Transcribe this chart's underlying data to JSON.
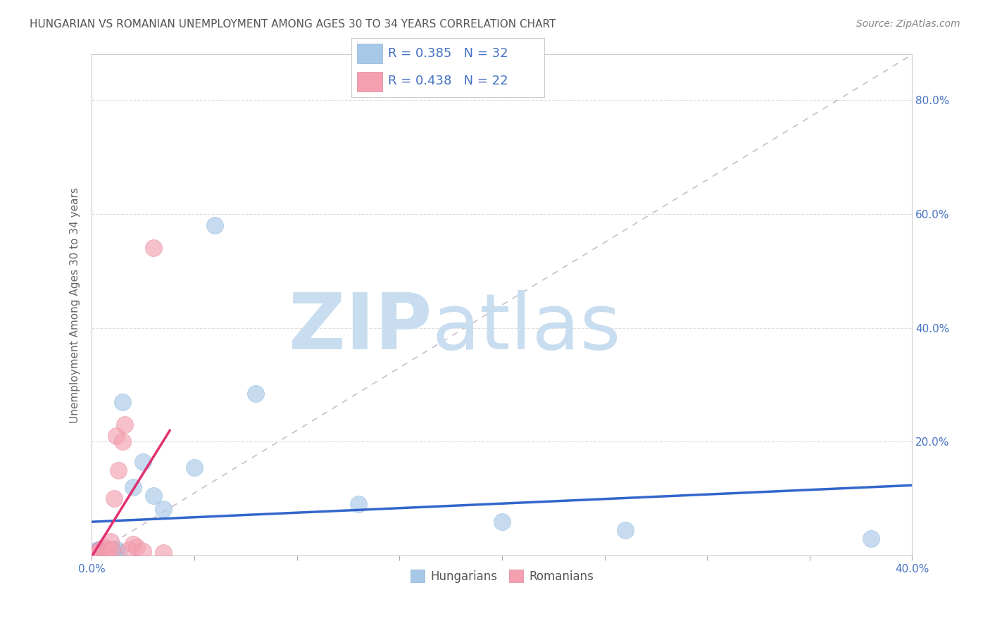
{
  "title": "HUNGARIAN VS ROMANIAN UNEMPLOYMENT AMONG AGES 30 TO 34 YEARS CORRELATION CHART",
  "source": "Source: ZipAtlas.com",
  "ylabel": "Unemployment Among Ages 30 to 34 years",
  "xlim": [
    0.0,
    0.4
  ],
  "ylim": [
    0.0,
    0.88
  ],
  "xticks": [
    0.0,
    0.05,
    0.1,
    0.15,
    0.2,
    0.25,
    0.3,
    0.35,
    0.4
  ],
  "yticks": [
    0.0,
    0.2,
    0.4,
    0.6,
    0.8
  ],
  "blue_color": "#a8c8e8",
  "pink_color": "#f4a0b0",
  "blue_line_color": "#3366cc",
  "pink_line_color": "#e03070",
  "diag_color": "#ccbbcc",
  "watermark_zip_color": "#c8ddef",
  "watermark_atlas_color": "#c8ddef",
  "legend_text_color": "#4472c4",
  "tick_color": "#4472c4",
  "title_color": "#555555",
  "source_color": "#888888",
  "ylabel_color": "#666666",
  "grid_color": "#dddddd",
  "hungarian_R": 0.385,
  "hungarian_N": 32,
  "romanian_R": 0.438,
  "romanian_N": 22,
  "hun_x": [
    0.001,
    0.002,
    0.002,
    0.003,
    0.003,
    0.004,
    0.004,
    0.005,
    0.005,
    0.006,
    0.006,
    0.007,
    0.007,
    0.008,
    0.008,
    0.009,
    0.01,
    0.011,
    0.012,
    0.013,
    0.015,
    0.02,
    0.025,
    0.03,
    0.035,
    0.05,
    0.06,
    0.08,
    0.13,
    0.2,
    0.26,
    0.38
  ],
  "hun_y": [
    0.005,
    0.008,
    0.003,
    0.01,
    0.004,
    0.006,
    0.012,
    0.004,
    0.008,
    0.006,
    0.01,
    0.005,
    0.009,
    0.003,
    0.007,
    0.004,
    0.01,
    0.008,
    0.012,
    0.006,
    0.27,
    0.12,
    0.165,
    0.105,
    0.082,
    0.155,
    0.58,
    0.285,
    0.09,
    0.06,
    0.045,
    0.03
  ],
  "rom_x": [
    0.001,
    0.002,
    0.003,
    0.004,
    0.005,
    0.006,
    0.006,
    0.007,
    0.008,
    0.009,
    0.01,
    0.011,
    0.012,
    0.013,
    0.015,
    0.016,
    0.018,
    0.02,
    0.022,
    0.025,
    0.03,
    0.035
  ],
  "rom_y": [
    0.002,
    0.005,
    0.003,
    0.01,
    0.004,
    0.008,
    0.015,
    0.006,
    0.012,
    0.025,
    0.01,
    0.1,
    0.21,
    0.15,
    0.2,
    0.23,
    0.01,
    0.02,
    0.015,
    0.008,
    0.54,
    0.005
  ]
}
